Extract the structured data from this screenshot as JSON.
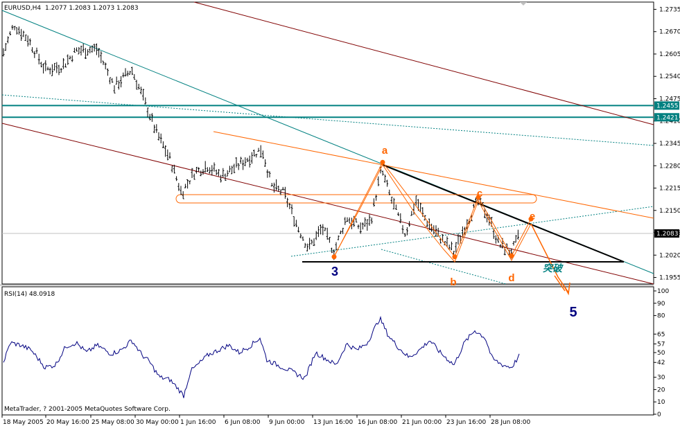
{
  "header": {
    "symbol": "EURUSD,H4",
    "ohlc": "1.2077 1.2083 1.2073 1.2083"
  },
  "rsi": {
    "title": "RSI(14) 48.0918"
  },
  "footer": {
    "copyright": "MetaTrader, ? 2001-2005 MetaQuotes Software Corp."
  },
  "colors": {
    "price_bars": "#000000",
    "channel_dark_red": "#800000",
    "channel_orange": "#ff6600",
    "teal": "#008080",
    "wave_dark_blue": "#000080",
    "black_line": "#000000"
  },
  "chart_data": {
    "type": "candlestick-ohlc",
    "price_axis": {
      "ticks": [
        "1.2735",
        "1.2670",
        "1.2605",
        "1.2540",
        "1.2475",
        "1.2410",
        "1.2345",
        "1.2280",
        "1.2215",
        "1.2150",
        "1.2085",
        "1.2020",
        "1.1955"
      ],
      "range": [
        1.194,
        1.275
      ],
      "current_price": "1.2083",
      "horizontal_levels": [
        "1.2455",
        "1.2421"
      ]
    },
    "rsi_axis": {
      "ticks": [
        "100",
        "90",
        "80",
        "65",
        "57",
        "50",
        "42",
        "30",
        "20",
        "10",
        "0"
      ],
      "range": [
        0,
        100
      ]
    },
    "x_ticks": [
      "18 May 2005",
      "20 May 16:00",
      "25 May 08:00",
      "30 May 00:00",
      "1 Jun 16:00",
      "6 Jun 08:00",
      "9 Jun 00:00",
      "13 Jun 16:00",
      "16 Jun 08:00",
      "21 Jun 00:00",
      "23 Jun 16:00",
      "28 Jun 08:00"
    ],
    "wave_labels": {
      "a": "a",
      "b": "b",
      "c": "c",
      "d": "d",
      "e": "e",
      "wave3": "3",
      "wave5": "5",
      "breakout": "突破"
    },
    "wave_points": [
      {
        "label": "3",
        "price": 1.2015
      },
      {
        "label": "a",
        "price": 1.229
      },
      {
        "label": "b",
        "price": 1.2015
      },
      {
        "label": "c",
        "price": 1.2188
      },
      {
        "label": "d",
        "price": 1.2018
      },
      {
        "label": "e",
        "price": 1.2125
      }
    ]
  }
}
